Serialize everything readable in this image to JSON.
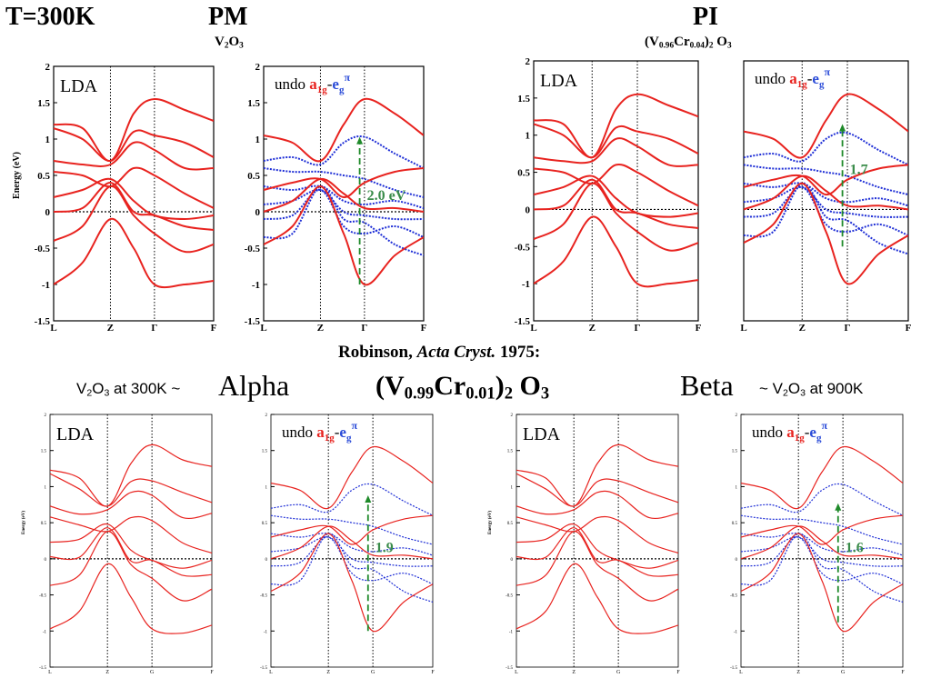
{
  "header": {
    "temperature": "T=300K",
    "pm": {
      "label": "PM",
      "formula": "V",
      "sub1": "2",
      "mid": "O",
      "sub2": "3"
    },
    "pi": {
      "label": "PI",
      "f_open": "(V",
      "f_s1": "0.96",
      "f_cr": "Cr",
      "f_s2": "0.04",
      "f_close": ")",
      "f_s3": "2",
      "f_o": " O",
      "f_s4": "3"
    }
  },
  "middle": {
    "reference_name": "Robinson,",
    "reference_journal": "Acta Cryst.",
    "reference_year": "1975:",
    "alpha_note_a": "V",
    "alpha_note_s1": "2",
    "alpha_note_b": "O",
    "alpha_note_s2": "3",
    "alpha_note_c": " at 300K ~",
    "alpha": "Alpha",
    "formula_open": "(V",
    "formula_s1": "0.99",
    "formula_cr": "Cr",
    "formula_s2": "0.01",
    "formula_close": ")",
    "formula_s3": "2",
    "formula_o": " O",
    "formula_s4": "3",
    "beta": "Beta",
    "beta_note_a": "~ V",
    "beta_note_s1": "2",
    "beta_note_b": "O",
    "beta_note_s2": "3",
    "beta_note_c": " at 900K"
  },
  "colors": {
    "lda": "#e8231f",
    "undo": "#1f2fd6",
    "arrow": "#1f8a2a",
    "gap_text": "#3a8c4a",
    "a1g": "#e8231f",
    "eg": "#2a4bd8"
  },
  "legend": {
    "lda": "LDA",
    "undo": "undo ",
    "a": "a",
    "a_sub": "1g",
    "dash": "-",
    "e": "e",
    "e_sub": "g",
    "e_sup": "π"
  },
  "chart_data": [
    {
      "type": "line",
      "id": "pm_lda",
      "ylabel": "Energy (eV)",
      "ylim": [
        -1.5,
        2
      ],
      "yticks": [
        "2",
        "1.5",
        "1",
        "0.5",
        "0",
        "-0.5",
        "-1",
        "-1.5"
      ],
      "xticks": [
        "L",
        "Z",
        "Γ",
        "F"
      ],
      "label": "LDA",
      "gap": ""
    },
    {
      "type": "line",
      "id": "pm_undo",
      "ylim": [
        -1.5,
        2
      ],
      "yticks": [
        "2",
        "1.5",
        "1",
        "0.5",
        "0",
        "-0.5",
        "-1",
        "-1.5"
      ],
      "xticks": [
        "L",
        "Z",
        "Γ",
        "F"
      ],
      "label": "undo",
      "gap": "2.0 eV",
      "gap_from": -1.0,
      "gap_to": 1.03
    },
    {
      "type": "line",
      "id": "pi_lda",
      "ylim": [
        -1.5,
        2
      ],
      "yticks": [
        "2",
        "1.5",
        "1",
        "0.5",
        "0",
        "-0.5",
        "-1",
        "-1.5"
      ],
      "xticks": [
        "L",
        "Z",
        "Γ",
        "F"
      ],
      "label": "LDA",
      "gap": ""
    },
    {
      "type": "line",
      "id": "pi_undo",
      "ylim": [
        -1.5,
        2
      ],
      "yticks": [],
      "xticks": [
        "L",
        "Z",
        "Γ",
        "F"
      ],
      "label": "undo",
      "gap": "1.7",
      "gap_from": -0.5,
      "gap_to": 1.15
    },
    {
      "type": "line",
      "id": "alpha_lda",
      "ylabel": "Energy (eV)",
      "ylim": [
        -1.5,
        2
      ],
      "yticks": [
        "2",
        "1.5",
        "1",
        "0.5",
        "0",
        "-0.5",
        "-1",
        "-1.5"
      ],
      "xticks": [
        "L",
        "Z",
        "G",
        "F"
      ],
      "label": "LDA",
      "gap": ""
    },
    {
      "type": "line",
      "id": "alpha_undo",
      "ylim": [
        -1.5,
        2
      ],
      "yticks": [
        "2",
        "1.5",
        "1",
        "0.5",
        "0",
        "-0.5",
        "-1",
        "-1.5"
      ],
      "xticks": [
        "L",
        "Z",
        "G",
        "F"
      ],
      "label": "undo",
      "gap": "1.9",
      "gap_from": -1.0,
      "gap_to": 0.88
    },
    {
      "type": "line",
      "id": "beta_lda",
      "ylabel": "Energy (eV)",
      "ylim": [
        -1.5,
        2
      ],
      "yticks": [
        "2",
        "1.5",
        "1",
        "0.5",
        "0",
        "-0.5",
        "-1",
        "-1.5"
      ],
      "xticks": [
        "L",
        "Z",
        "G",
        "F"
      ],
      "label": "LDA",
      "gap": ""
    },
    {
      "type": "line",
      "id": "beta_undo",
      "ylim": [
        -1.5,
        2
      ],
      "yticks": [
        "2",
        "1.5",
        "1",
        "0.5",
        "0",
        "-0.5",
        "-1",
        "-1.5"
      ],
      "xticks": [
        "L",
        "Z",
        "G",
        "F"
      ],
      "label": "undo",
      "gap": "1.6",
      "gap_from": -0.88,
      "gap_to": 0.77
    }
  ]
}
